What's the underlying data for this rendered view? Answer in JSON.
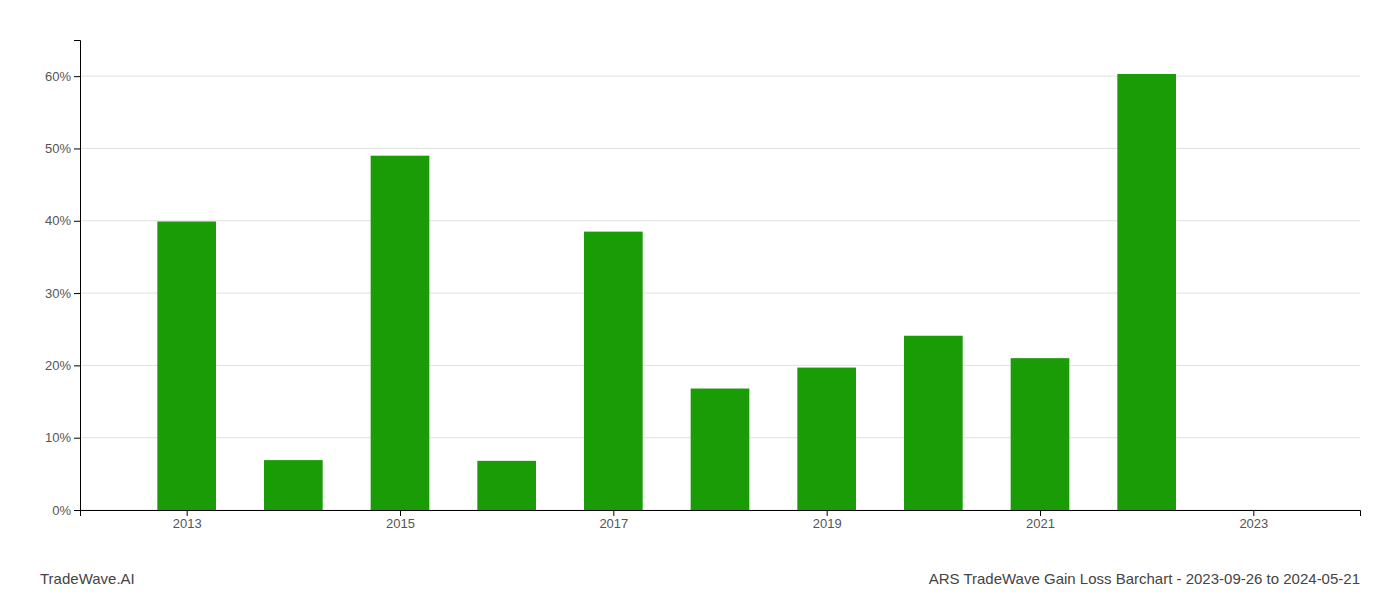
{
  "chart_data": {
    "type": "bar",
    "title": "ARS TradeWave Gain Loss Barchart - 2023-09-26 to 2024-05-21",
    "annotations": [
      "TradeWave.AI"
    ],
    "x": [
      2013,
      2014,
      2015,
      2016,
      2017,
      2018,
      2019,
      2020,
      2021,
      2022,
      2023
    ],
    "values": [
      0.399,
      0.069,
      0.49,
      0.068,
      0.385,
      0.168,
      0.197,
      0.241,
      0.21,
      0.603,
      0.0
    ],
    "color": "#1a9c06",
    "xlim": [
      2012.0,
      2024.0
    ],
    "xticks": [
      2013,
      2015,
      2017,
      2019,
      2021,
      2023
    ],
    "ylim": [
      0.0,
      0.65
    ],
    "yticks": [
      {
        "value": 0.0,
        "label": "0%"
      },
      {
        "value": 0.1,
        "label": "10%"
      },
      {
        "value": 0.2,
        "label": "20%"
      },
      {
        "value": 0.3,
        "label": "30%"
      },
      {
        "value": 0.4,
        "label": "40%"
      },
      {
        "value": 0.5,
        "label": "50%"
      },
      {
        "value": 0.6,
        "label": "60%"
      }
    ],
    "grid": true
  }
}
